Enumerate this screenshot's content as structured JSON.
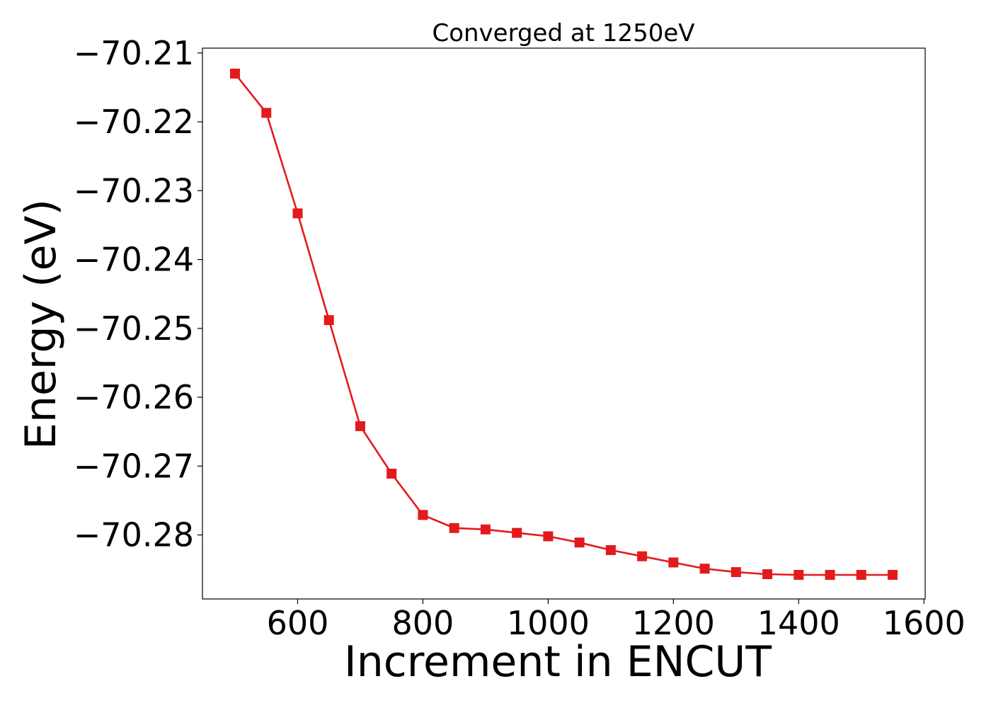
{
  "chart_data": {
    "type": "line",
    "title": "Converged at 1250eV",
    "xlabel": "Increment in ENCUT",
    "ylabel": "Energy (eV)",
    "x": [
      500,
      550,
      600,
      650,
      700,
      750,
      800,
      850,
      900,
      950,
      1000,
      1050,
      1100,
      1150,
      1200,
      1250,
      1300,
      1350,
      1400,
      1450,
      1500,
      1550
    ],
    "series": [
      {
        "color": "#e31a1c",
        "marker": "square",
        "values": [
          -70.213,
          -70.2187,
          -70.2333,
          -70.2488,
          -70.2642,
          -70.2711,
          -70.2771,
          -70.279,
          -70.2792,
          -70.2797,
          -70.2802,
          -70.2811,
          -70.2822,
          -70.2831,
          -70.284,
          -70.2849,
          -70.2854,
          -70.2857,
          -70.2858,
          -70.2858,
          -70.2858,
          -70.2858
        ]
      }
    ],
    "xlim": [
      448,
      1602
    ],
    "ylim": [
      -70.2893,
      -70.2093
    ],
    "xticks": [
      600,
      800,
      1000,
      1200,
      1400,
      1600
    ],
    "yticks": [
      -70.21,
      -70.22,
      -70.23,
      -70.24,
      -70.25,
      -70.26,
      -70.27,
      -70.28
    ],
    "xtick_labels": [
      "600",
      "800",
      "1000",
      "1200",
      "1400",
      "1600"
    ],
    "ytick_labels": [
      "−70.21",
      "−70.22",
      "−70.23",
      "−70.24",
      "−70.25",
      "−70.26",
      "−70.27",
      "−70.28"
    ],
    "grid": false,
    "legend": false
  }
}
